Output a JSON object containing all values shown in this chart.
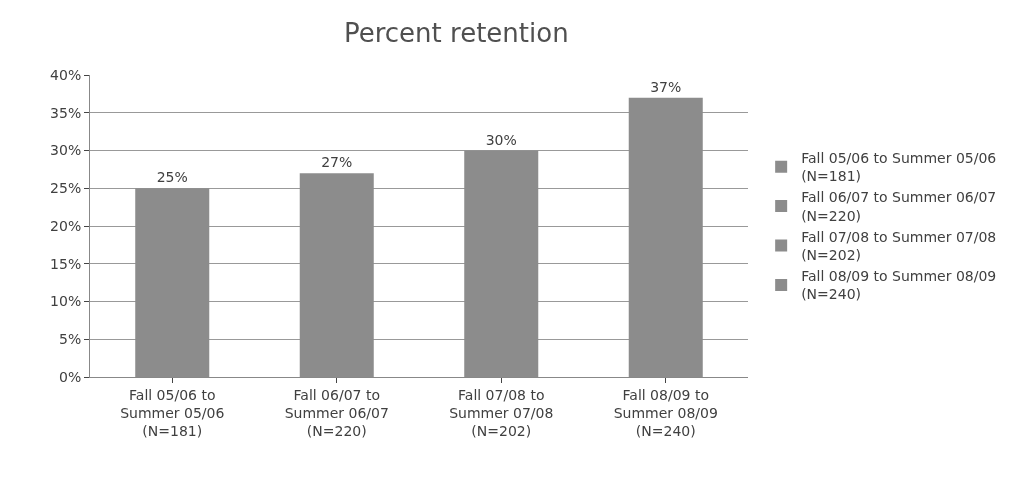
{
  "chart_data": {
    "type": "bar",
    "title": "Percent retention",
    "categories": [
      "Fall 05/06 to\nSummer 05/06\n(N=181)",
      "Fall 06/07 to\nSummer 06/07\n(N=220)",
      "Fall 07/08 to\nSummer 07/08\n(N=202)",
      "Fall 08/09 to\nSummer 08/09\n(N=240)"
    ],
    "series": [
      {
        "name": "Fall 05/06 to Summer 05/06\n(N=181)",
        "color": "#8c8c8c",
        "values": [
          25,
          null,
          null,
          null
        ],
        "value_labels": [
          "25%",
          null,
          null,
          null
        ]
      },
      {
        "name": "Fall 06/07 to Summer 06/07\n(N=220)",
        "color": "#8c8c8c",
        "values": [
          null,
          27,
          null,
          null
        ],
        "value_labels": [
          null,
          "27%",
          null,
          null
        ]
      },
      {
        "name": "Fall 07/08 to Summer 07/08\n(N=202)",
        "color": "#8c8c8c",
        "values": [
          null,
          null,
          30,
          null
        ],
        "value_labels": [
          null,
          null,
          "30%",
          null
        ]
      },
      {
        "name": "Fall 08/09 to Summer 08/09\n(N=240)",
        "color": "#8c8c8c",
        "values": [
          null,
          null,
          null,
          37
        ],
        "value_labels": [
          null,
          null,
          null,
          "37%"
        ]
      }
    ],
    "ylim": [
      0,
      40
    ],
    "yticks": [
      {
        "value": 0,
        "label": "0%"
      },
      {
        "value": 5,
        "label": "5%"
      },
      {
        "value": 10,
        "label": "10%"
      },
      {
        "value": 15,
        "label": "15%"
      },
      {
        "value": 20,
        "label": "20%"
      },
      {
        "value": 25,
        "label": "25%"
      },
      {
        "value": 30,
        "label": "30%"
      },
      {
        "value": 35,
        "label": "35%"
      },
      {
        "value": 40,
        "label": "40%"
      }
    ],
    "grid": "y",
    "legend": "right"
  }
}
